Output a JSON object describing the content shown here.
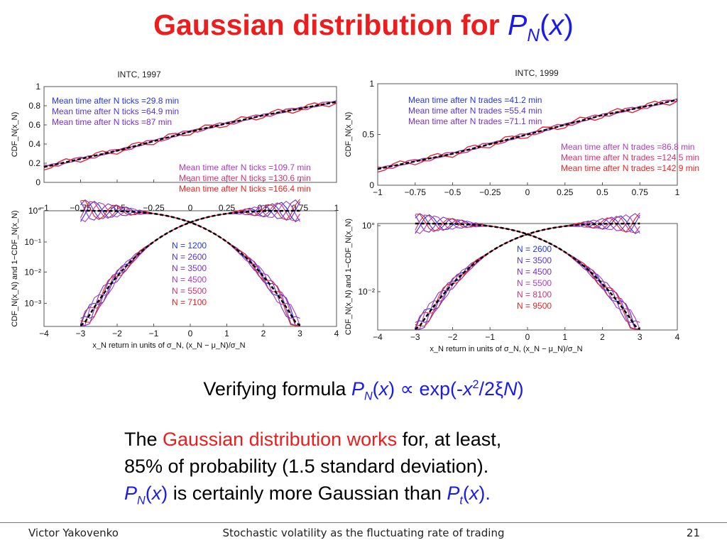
{
  "slide": {
    "title_prefix": "Gaussian distribution for ",
    "title_P": "P",
    "title_sub": "N",
    "title_paren_open": "(",
    "title_x": "x",
    "title_paren_close": ")",
    "formula": {
      "prefix": "Verifying formula ",
      "P": "P",
      "sub": "N",
      "open": "(",
      "x": "x",
      "close": ")",
      "mid": " ∝ exp(-",
      "x2": "x",
      "sup": "2",
      "tail_a": "/2",
      "xi": "ξ",
      "N": "N",
      "tail_b": ")"
    },
    "body": {
      "line1_a": "The ",
      "line1_red": "Gaussian distribution works",
      "line1_b": " for, at least,",
      "line2": "85% of probability (1.5 standard deviation).",
      "line3_P": "P",
      "line3_sub": "N",
      "line3_open": "(",
      "line3_x": "x",
      "line3_close": ")",
      "line3_mid": " is certainly more Gaussian than ",
      "line3_P2": "P",
      "line3_sub2": "t",
      "line3_open2": "(",
      "line3_x2": "x",
      "line3_close2": ")."
    }
  },
  "footer": {
    "author": "Victor Yakovenko",
    "topic": "Stochastic volatility as the fluctuating rate of trading",
    "page": "21"
  },
  "colors": {
    "red": "#ee1c1c",
    "blue": "#1a1aee",
    "purple": "#7a2fd0",
    "magenta": "#c4309c",
    "black": "#000000"
  },
  "chart_data": [
    {
      "type": "line",
      "title": "INTC, 1997",
      "ylabel": "CDF_N(x_N)",
      "xlim": [
        -1,
        1
      ],
      "ylim": [
        0,
        1
      ],
      "yticks": [
        "0",
        "0.2",
        "0.4",
        "0.6",
        "0.8",
        "1"
      ],
      "xticks": [
        "−1",
        "−0.75",
        "−0.5",
        "−0.25",
        "0",
        "0.25",
        "0.5",
        "0.75",
        "1"
      ],
      "legend": [
        {
          "label": "Mean time after N ticks =29.8 min",
          "color": "#2233ee"
        },
        {
          "label": "Mean time after N ticks =64.9 min",
          "color": "#5533dd"
        },
        {
          "label": "Mean time after N ticks =87 min",
          "color": "#7a2fd0"
        },
        {
          "label": "Mean time after N ticks =109.7 min",
          "color": "#b13abf"
        },
        {
          "label": "Mean time after N ticks =130.6 min",
          "color": "#d8306f"
        },
        {
          "label": "Mean time after N ticks =166.4 min",
          "color": "#ee2222"
        }
      ],
      "gaussian": {
        "x": [
          -1,
          -0.5,
          0,
          0.5,
          1
        ],
        "y": [
          0.16,
          0.33,
          0.53,
          0.7,
          0.84
        ]
      }
    },
    {
      "type": "line",
      "title": "",
      "xlabel": "x_N return in units of σ_N, (x_N − μ_N)/σ_N",
      "ylabel": "CDF_N(x_N) and 1−CDF_N(x_N)",
      "xlim": [
        -4,
        4
      ],
      "ylim": [
        0.001,
        1
      ],
      "log_y": true,
      "yticks": [
        "10°",
        "10⁻¹",
        "10⁻²",
        "10⁻³"
      ],
      "xticks": [
        "−4",
        "−3",
        "−2",
        "−1",
        "0",
        "1",
        "2",
        "3",
        "4"
      ],
      "legend": [
        {
          "label": "N = 1200",
          "color": "#2233ee"
        },
        {
          "label": "N = 2600",
          "color": "#5533dd"
        },
        {
          "label": "N = 3500",
          "color": "#7a2fd0"
        },
        {
          "label": "N = 4500",
          "color": "#b13abf"
        },
        {
          "label": "N = 5500",
          "color": "#d8306f"
        },
        {
          "label": "N = 7100",
          "color": "#ee2222"
        }
      ]
    },
    {
      "type": "line",
      "title": "INTC, 1999",
      "ylabel": "CDF_N(x_N)",
      "xlim": [
        -1,
        1
      ],
      "ylim": [
        0,
        1
      ],
      "yticks": [
        "0",
        "0.5",
        "1"
      ],
      "xticks": [
        "−1",
        "−0.75",
        "−0.5",
        "−0.25",
        "0",
        "0.25",
        "0.5",
        "0.75",
        "1"
      ],
      "legend": [
        {
          "label": "Mean time after N trades =41.2 min",
          "color": "#2233ee"
        },
        {
          "label": "Mean time after N trades =55.4 min",
          "color": "#5533dd"
        },
        {
          "label": "Mean time after N trades =71.1 min",
          "color": "#7a2fd0"
        },
        {
          "label": "Mean time after N trades =86.8 min",
          "color": "#b13abf"
        },
        {
          "label": "Mean time after N trades =124.5 min",
          "color": "#d8306f"
        },
        {
          "label": "Mean time after N trades =142.9 min",
          "color": "#ee2222"
        }
      ],
      "gaussian": {
        "x": [
          -1,
          -0.5,
          0,
          0.5,
          1
        ],
        "y": [
          0.16,
          0.31,
          0.5,
          0.69,
          0.84
        ]
      }
    },
    {
      "type": "line",
      "title": "",
      "xlabel": "x_N return in units of σ_N, (x_N − μ_N)/σ_N",
      "ylabel": "CDF_N(x_N) and 1−CDF_N(x_N)",
      "xlim": [
        -4,
        4
      ],
      "ylim": [
        0.001,
        1
      ],
      "log_y": true,
      "yticks": [
        "10°",
        "10⁻²"
      ],
      "xticks": [
        "−4",
        "−3",
        "−2",
        "−1",
        "0",
        "1",
        "2",
        "3",
        "4"
      ],
      "legend": [
        {
          "label": "N = 2600",
          "color": "#2233ee"
        },
        {
          "label": "N = 3500",
          "color": "#5533dd"
        },
        {
          "label": "N = 4500",
          "color": "#7a2fd0"
        },
        {
          "label": "N = 5500",
          "color": "#b13abf"
        },
        {
          "label": "N = 8100",
          "color": "#d8306f"
        },
        {
          "label": "N = 9500",
          "color": "#ee2222"
        }
      ]
    }
  ]
}
